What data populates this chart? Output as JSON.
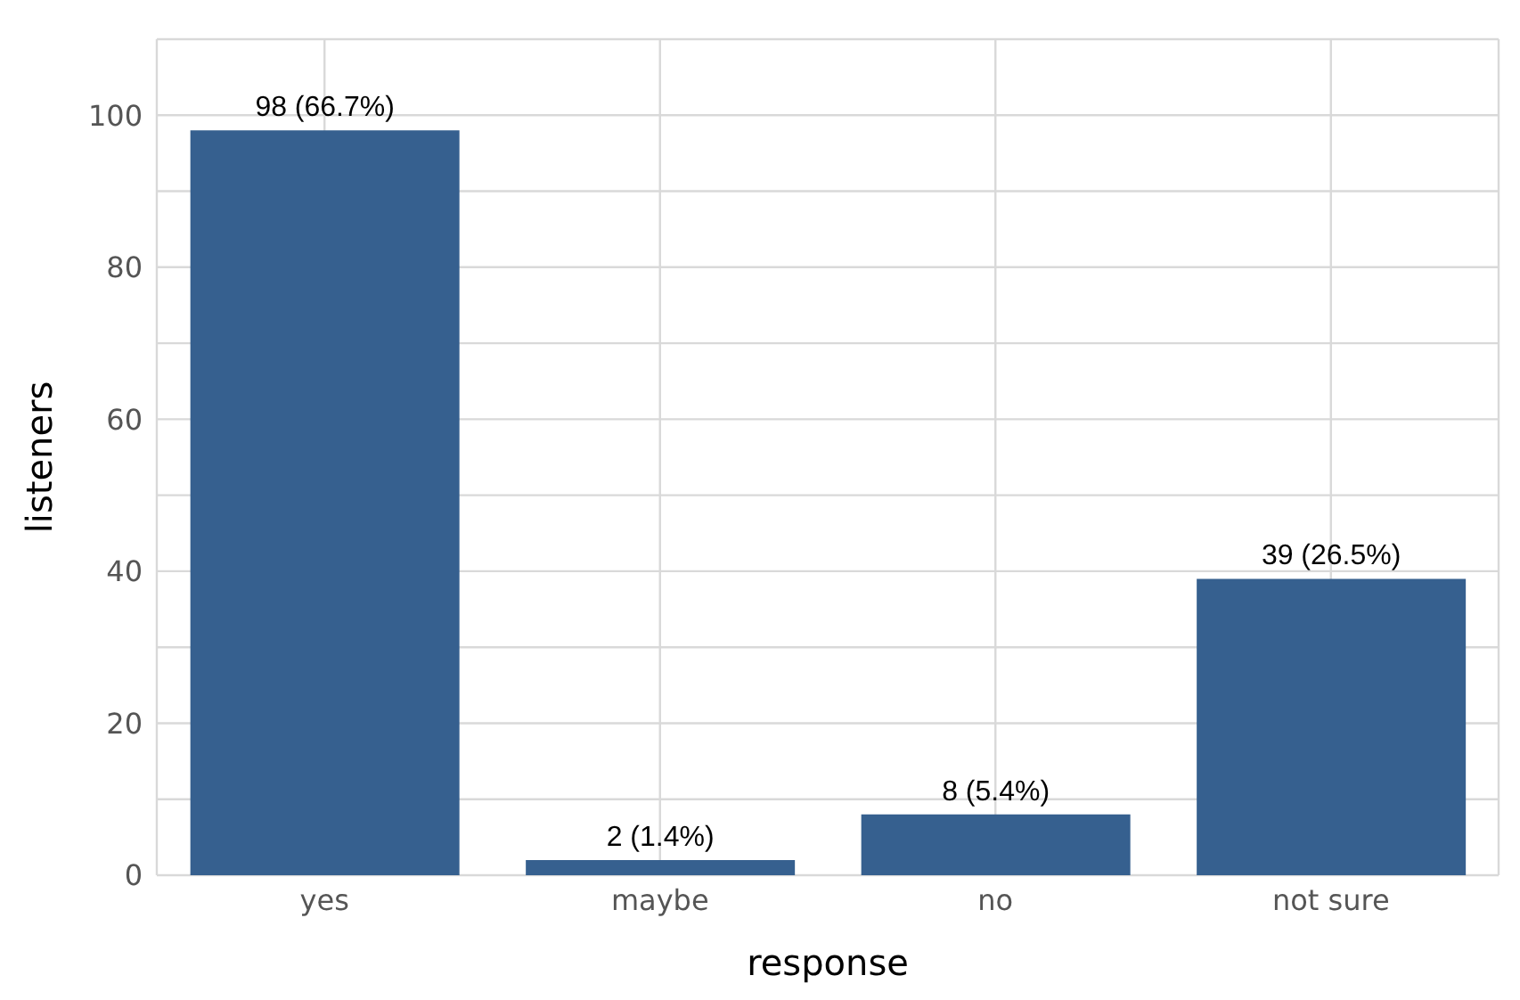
{
  "chart_data": {
    "type": "bar",
    "xlabel": "response",
    "ylabel": "listeners",
    "categories": [
      "yes",
      "maybe",
      "no",
      "not sure"
    ],
    "values": [
      98,
      2,
      8,
      39
    ],
    "value_labels": [
      "98 (66.7%)",
      "2 (1.4%)",
      "8 (5.4%)",
      "39 (26.5%)"
    ],
    "color": "#36608f",
    "ylim": [
      0,
      110
    ],
    "yticks": [
      0,
      {
        "value": 10,
        "label": null
      },
      20,
      {
        "value": 30,
        "label": null
      },
      40,
      {
        "value": 50,
        "label": null
      },
      60,
      {
        "value": 70,
        "label": null
      },
      80,
      {
        "value": 90,
        "label": null
      },
      100,
      {
        "value": 110,
        "label": null
      }
    ],
    "grid": true
  }
}
